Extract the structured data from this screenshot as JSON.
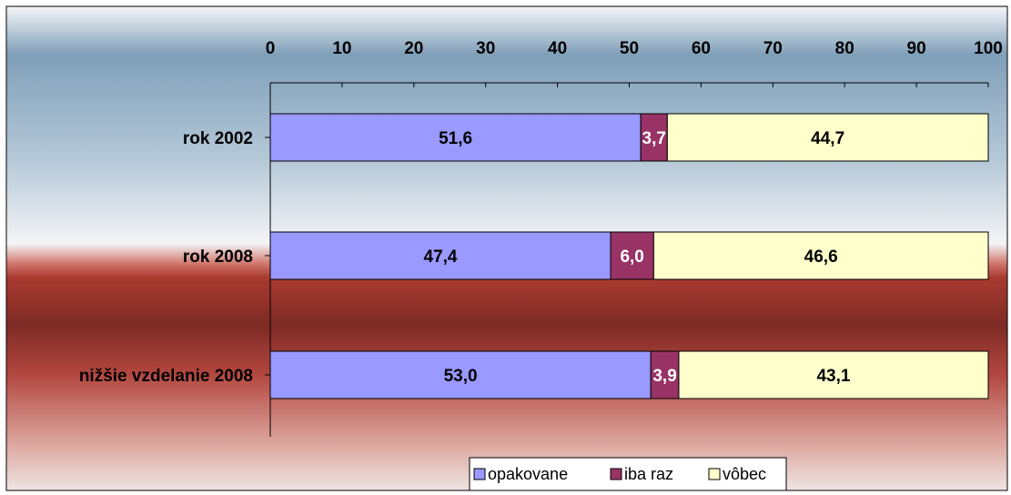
{
  "chart_data": {
    "type": "bar",
    "orientation": "horizontal",
    "stacked": true,
    "categories": [
      "rok 2002",
      "rok 2008",
      "nižšie vzdelanie 2008"
    ],
    "series": [
      {
        "name": "opakovane",
        "values": [
          51.6,
          47.4,
          53.0
        ],
        "labels": [
          "51,6",
          "47,4",
          "53,0"
        ],
        "color": "#9999ff"
      },
      {
        "name": "iba raz",
        "values": [
          3.7,
          6.0,
          3.9
        ],
        "labels": [
          "3,7",
          "6,0",
          "3,9"
        ],
        "color": "#993366"
      },
      {
        "name": "vôbec",
        "values": [
          44.7,
          46.6,
          43.1
        ],
        "labels": [
          "44,7",
          "46,6",
          "43,1"
        ],
        "color": "#ffffcc"
      }
    ],
    "xlim": [
      0,
      100
    ],
    "xticks": [
      0,
      10,
      20,
      30,
      40,
      50,
      60,
      70,
      80,
      90,
      100
    ],
    "xtick_labels": [
      "0",
      "10",
      "20",
      "30",
      "40",
      "50",
      "60",
      "70",
      "80",
      "90",
      "100"
    ],
    "axis_position": "top",
    "grid": false,
    "legend_position": "bottom-center"
  }
}
